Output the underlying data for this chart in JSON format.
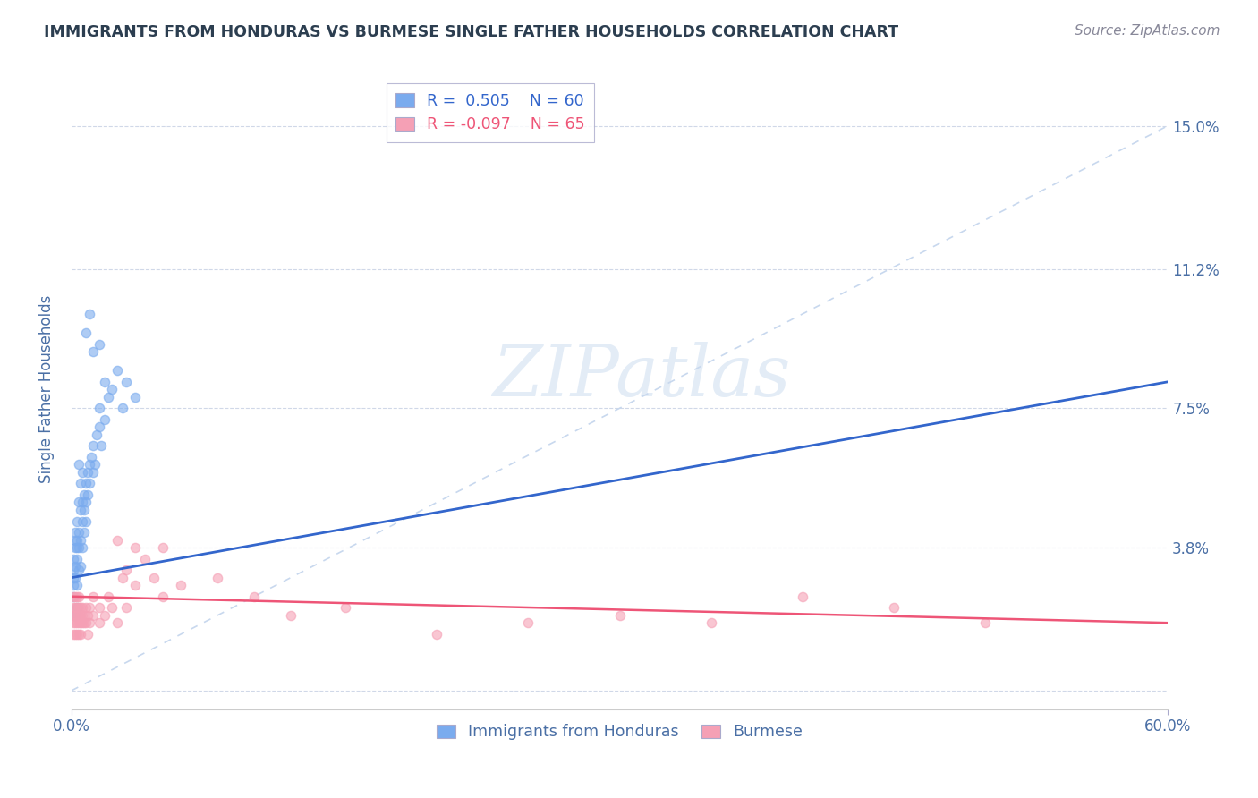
{
  "title": "IMMIGRANTS FROM HONDURAS VS BURMESE SINGLE FATHER HOUSEHOLDS CORRELATION CHART",
  "source": "Source: ZipAtlas.com",
  "ylabel": "Single Father Households",
  "xlim": [
    0.0,
    0.6
  ],
  "ylim": [
    -0.005,
    0.165
  ],
  "yticks": [
    0.0,
    0.038,
    0.075,
    0.112,
    0.15
  ],
  "ytick_labels": [
    "",
    "3.8%",
    "7.5%",
    "11.2%",
    "15.0%"
  ],
  "xticks": [
    0.0,
    0.6
  ],
  "xtick_labels": [
    "0.0%",
    "60.0%"
  ],
  "legend_r1": "R =  0.505",
  "legend_n1": "N = 60",
  "legend_r2": "R = -0.097",
  "legend_n2": "N = 65",
  "series1_color": "#7aabee",
  "series2_color": "#f5a0b5",
  "trendline1_color": "#3366cc",
  "trendline2_color": "#ee5577",
  "diagonal_color": "#c8d8ee",
  "watermark": "ZIPatlas",
  "title_color": "#2c3e50",
  "axis_label_color": "#4a6fa5",
  "tick_color": "#4a6fa5",
  "source_color": "#888899",
  "background_color": "#ffffff",
  "trendline1_x": [
    0.0,
    0.6
  ],
  "trendline1_y": [
    0.03,
    0.082
  ],
  "trendline2_x": [
    0.0,
    0.6
  ],
  "trendline2_y": [
    0.025,
    0.018
  ],
  "series1": [
    [
      0.001,
      0.03
    ],
    [
      0.001,
      0.028
    ],
    [
      0.001,
      0.025
    ],
    [
      0.001,
      0.032
    ],
    [
      0.001,
      0.035
    ],
    [
      0.002,
      0.033
    ],
    [
      0.002,
      0.03
    ],
    [
      0.002,
      0.038
    ],
    [
      0.002,
      0.04
    ],
    [
      0.002,
      0.042
    ],
    [
      0.003,
      0.035
    ],
    [
      0.003,
      0.038
    ],
    [
      0.003,
      0.04
    ],
    [
      0.003,
      0.045
    ],
    [
      0.003,
      0.028
    ],
    [
      0.004,
      0.042
    ],
    [
      0.004,
      0.038
    ],
    [
      0.004,
      0.05
    ],
    [
      0.004,
      0.032
    ],
    [
      0.005,
      0.048
    ],
    [
      0.005,
      0.055
    ],
    [
      0.005,
      0.04
    ],
    [
      0.005,
      0.033
    ],
    [
      0.006,
      0.05
    ],
    [
      0.006,
      0.045
    ],
    [
      0.006,
      0.038
    ],
    [
      0.007,
      0.052
    ],
    [
      0.007,
      0.048
    ],
    [
      0.007,
      0.042
    ],
    [
      0.008,
      0.055
    ],
    [
      0.008,
      0.05
    ],
    [
      0.008,
      0.045
    ],
    [
      0.009,
      0.058
    ],
    [
      0.009,
      0.052
    ],
    [
      0.01,
      0.06
    ],
    [
      0.01,
      0.055
    ],
    [
      0.011,
      0.062
    ],
    [
      0.012,
      0.065
    ],
    [
      0.012,
      0.058
    ],
    [
      0.013,
      0.06
    ],
    [
      0.014,
      0.068
    ],
    [
      0.015,
      0.07
    ],
    [
      0.015,
      0.075
    ],
    [
      0.016,
      0.065
    ],
    [
      0.018,
      0.072
    ],
    [
      0.02,
      0.078
    ],
    [
      0.022,
      0.08
    ],
    [
      0.025,
      0.085
    ],
    [
      0.028,
      0.075
    ],
    [
      0.03,
      0.082
    ],
    [
      0.008,
      0.095
    ],
    [
      0.01,
      0.1
    ],
    [
      0.012,
      0.09
    ],
    [
      0.015,
      0.092
    ],
    [
      0.018,
      0.082
    ],
    [
      0.006,
      0.058
    ],
    [
      0.004,
      0.06
    ],
    [
      0.003,
      0.022
    ],
    [
      0.002,
      0.02
    ],
    [
      0.035,
      0.078
    ]
  ],
  "series2": [
    [
      0.001,
      0.022
    ],
    [
      0.001,
      0.02
    ],
    [
      0.001,
      0.025
    ],
    [
      0.001,
      0.018
    ],
    [
      0.001,
      0.015
    ],
    [
      0.002,
      0.022
    ],
    [
      0.002,
      0.02
    ],
    [
      0.002,
      0.018
    ],
    [
      0.002,
      0.025
    ],
    [
      0.002,
      0.015
    ],
    [
      0.003,
      0.02
    ],
    [
      0.003,
      0.022
    ],
    [
      0.003,
      0.018
    ],
    [
      0.003,
      0.015
    ],
    [
      0.003,
      0.025
    ],
    [
      0.004,
      0.022
    ],
    [
      0.004,
      0.018
    ],
    [
      0.004,
      0.02
    ],
    [
      0.004,
      0.015
    ],
    [
      0.004,
      0.025
    ],
    [
      0.005,
      0.02
    ],
    [
      0.005,
      0.018
    ],
    [
      0.005,
      0.022
    ],
    [
      0.005,
      0.015
    ],
    [
      0.006,
      0.02
    ],
    [
      0.006,
      0.018
    ],
    [
      0.006,
      0.022
    ],
    [
      0.007,
      0.018
    ],
    [
      0.007,
      0.02
    ],
    [
      0.008,
      0.022
    ],
    [
      0.008,
      0.018
    ],
    [
      0.009,
      0.02
    ],
    [
      0.009,
      0.015
    ],
    [
      0.01,
      0.022
    ],
    [
      0.01,
      0.018
    ],
    [
      0.012,
      0.02
    ],
    [
      0.012,
      0.025
    ],
    [
      0.015,
      0.022
    ],
    [
      0.015,
      0.018
    ],
    [
      0.018,
      0.02
    ],
    [
      0.02,
      0.025
    ],
    [
      0.022,
      0.022
    ],
    [
      0.025,
      0.018
    ],
    [
      0.025,
      0.04
    ],
    [
      0.028,
      0.03
    ],
    [
      0.03,
      0.022
    ],
    [
      0.03,
      0.032
    ],
    [
      0.035,
      0.028
    ],
    [
      0.035,
      0.038
    ],
    [
      0.04,
      0.035
    ],
    [
      0.045,
      0.03
    ],
    [
      0.05,
      0.025
    ],
    [
      0.05,
      0.038
    ],
    [
      0.06,
      0.028
    ],
    [
      0.08,
      0.03
    ],
    [
      0.1,
      0.025
    ],
    [
      0.12,
      0.02
    ],
    [
      0.15,
      0.022
    ],
    [
      0.2,
      0.015
    ],
    [
      0.25,
      0.018
    ],
    [
      0.3,
      0.02
    ],
    [
      0.35,
      0.018
    ],
    [
      0.4,
      0.025
    ],
    [
      0.45,
      0.022
    ],
    [
      0.5,
      0.018
    ]
  ]
}
